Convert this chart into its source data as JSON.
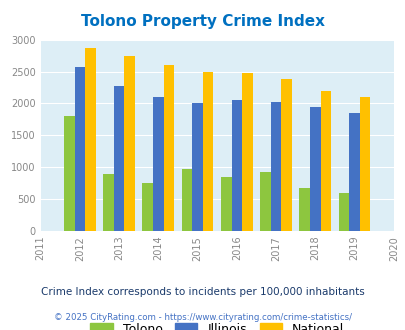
{
  "title": "Tolono Property Crime Index",
  "years": [
    2012,
    2013,
    2014,
    2015,
    2016,
    2017,
    2018,
    2019
  ],
  "x_ticks": [
    2011,
    2012,
    2013,
    2014,
    2015,
    2016,
    2017,
    2018,
    2019,
    2020
  ],
  "tolono": [
    1800,
    900,
    750,
    975,
    850,
    925,
    675,
    600
  ],
  "illinois": [
    2575,
    2275,
    2100,
    2000,
    2050,
    2025,
    1950,
    1850
  ],
  "national": [
    2875,
    2750,
    2600,
    2500,
    2475,
    2375,
    2200,
    2100
  ],
  "ylim": [
    0,
    3000
  ],
  "yticks": [
    0,
    500,
    1000,
    1500,
    2000,
    2500,
    3000
  ],
  "color_tolono": "#8dc63f",
  "color_illinois": "#4472c4",
  "color_national": "#ffc000",
  "bg_color": "#ddeef6",
  "title_color": "#0070c0",
  "legend_labels": [
    "Tolono",
    "Illinois",
    "National"
  ],
  "note": "Crime Index corresponds to incidents per 100,000 inhabitants",
  "footer": "© 2025 CityRating.com - https://www.cityrating.com/crime-statistics/",
  "bar_width": 0.27,
  "note_color": "#1a3a6b",
  "footer_color": "#4472c4"
}
